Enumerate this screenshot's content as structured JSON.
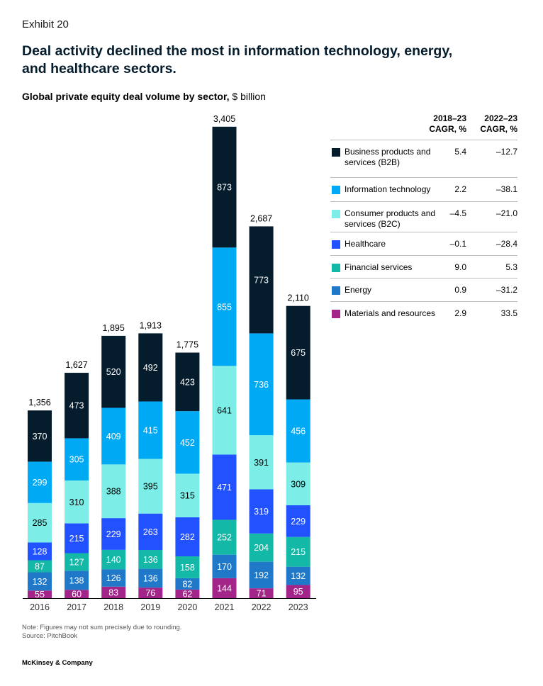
{
  "exhibit": "Exhibit 20",
  "headline": "Deal activity declined the most in information technology, energy, and healthcare sectors.",
  "subtitle_bold": "Global private equity deal volume by sector,",
  "subtitle_unit": " $ billion",
  "legend_headers": {
    "cagr1": "2018–23 CAGR, %",
    "cagr2": "2022–23 CAGR, %"
  },
  "colors": {
    "b2b": "#051c2c",
    "it": "#00a9f4",
    "b2c": "#7ceee7",
    "healthcare": "#2251ff",
    "financial": "#14b8a6",
    "energy": "#1f78c8",
    "materials": "#a4258a"
  },
  "chart_data": {
    "type": "bar",
    "stacked": true,
    "title": "Global private equity deal volume by sector, $ billion",
    "categories": [
      "2016",
      "2017",
      "2018",
      "2019",
      "2020",
      "2021",
      "2022",
      "2023"
    ],
    "totals": [
      "1,356",
      "1,627",
      "1,895",
      "1,913",
      "1,775",
      "3,405",
      "2,687",
      "2,110"
    ],
    "series": [
      {
        "key": "materials",
        "name": "Materials and resources",
        "values": [
          55,
          60,
          83,
          76,
          62,
          144,
          71,
          95
        ],
        "cagr_2018_23": "2.9",
        "cagr_2022_23": "33.5"
      },
      {
        "key": "energy",
        "name": "Energy",
        "values": [
          132,
          138,
          126,
          136,
          82,
          170,
          192,
          132
        ],
        "cagr_2018_23": "0.9",
        "cagr_2022_23": "–31.2"
      },
      {
        "key": "financial",
        "name": "Financial services",
        "values": [
          87,
          127,
          140,
          136,
          158,
          252,
          204,
          215
        ],
        "cagr_2018_23": "9.0",
        "cagr_2022_23": "5.3"
      },
      {
        "key": "healthcare",
        "name": "Healthcare",
        "values": [
          128,
          215,
          229,
          263,
          282,
          471,
          319,
          229
        ],
        "cagr_2018_23": "–0.1",
        "cagr_2022_23": "–28.4"
      },
      {
        "key": "b2c",
        "name": "Consumer products and services (B2C)",
        "values": [
          285,
          310,
          388,
          395,
          315,
          641,
          391,
          309
        ],
        "cagr_2018_23": "–4.5",
        "cagr_2022_23": "–21.0"
      },
      {
        "key": "it",
        "name": "Information technology",
        "values": [
          299,
          305,
          409,
          415,
          452,
          855,
          736,
          456
        ],
        "cagr_2018_23": "2.2",
        "cagr_2022_23": "–38.1"
      },
      {
        "key": "b2b",
        "name": "Business products and services (B2B)",
        "values": [
          370,
          473,
          520,
          492,
          423,
          873,
          773,
          675
        ],
        "cagr_2018_23": "5.4",
        "cagr_2022_23": "–12.7"
      }
    ],
    "legend_order": [
      "b2b",
      "it",
      "b2c",
      "healthcare",
      "financial",
      "energy",
      "materials"
    ],
    "ylim": [
      0,
      3405
    ],
    "grid": false
  },
  "note": "Note: Figures may not sum precisely due to rounding.",
  "source": "Source: PitchBook",
  "footer": "McKinsey & Company"
}
